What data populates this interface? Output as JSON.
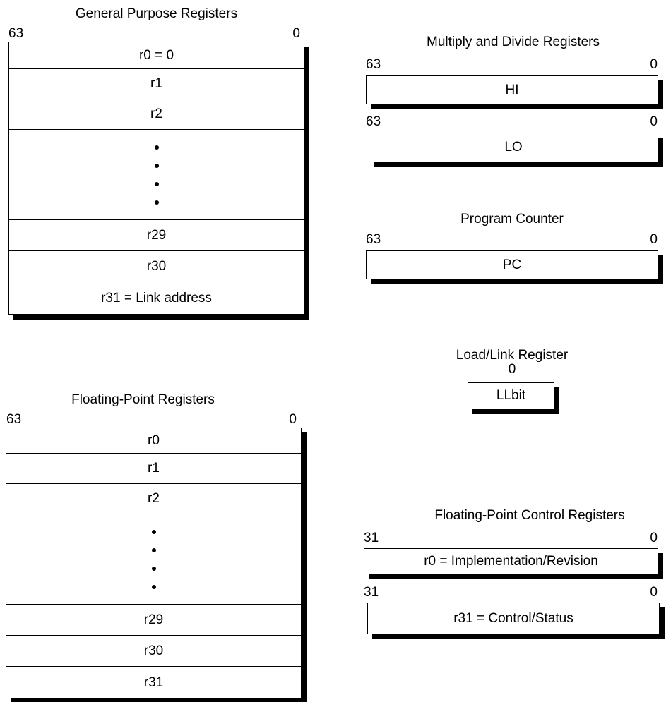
{
  "gpr": {
    "title": "General Purpose Registers",
    "msb": "63",
    "lsb": "0",
    "rows": [
      "r0 = 0",
      "r1",
      "r2",
      "r29",
      "r30",
      "r31 = Link address"
    ]
  },
  "fpr": {
    "title": "Floating-Point Registers",
    "msb": "63",
    "lsb": "0",
    "rows": [
      "r0",
      "r1",
      "r2",
      "r29",
      "r30",
      "r31"
    ]
  },
  "muldiv": {
    "title": "Multiply and Divide Registers",
    "hi": {
      "msb": "63",
      "lsb": "0",
      "label": "HI"
    },
    "lo": {
      "msb": "63",
      "lsb": "0",
      "label": "LO"
    }
  },
  "pc": {
    "title": "Program Counter",
    "msb": "63",
    "lsb": "0",
    "label": "PC"
  },
  "llbit": {
    "title": "Load/Link Register",
    "bit": "0",
    "label": "LLbit"
  },
  "fcr": {
    "title": "Floating-Point Control Registers",
    "fcr0": {
      "msb": "31",
      "lsb": "0",
      "label": "r0 = Implementation/Revision"
    },
    "fcr31": {
      "msb": "31",
      "lsb": "0",
      "label": "r31 = Control/Status"
    }
  }
}
